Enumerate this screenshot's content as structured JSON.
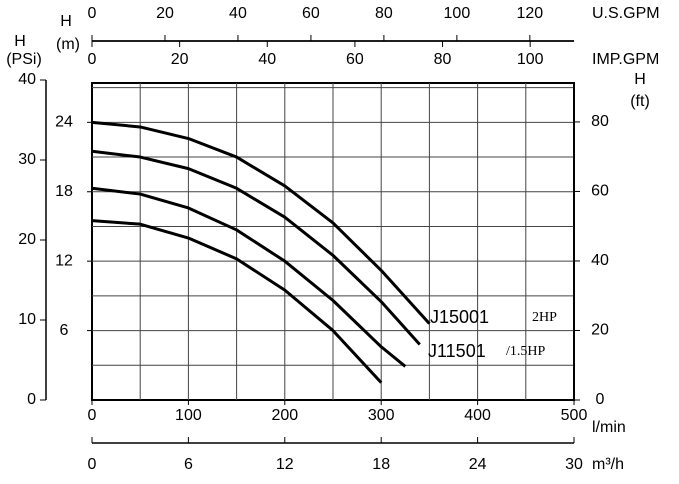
{
  "chart_data": {
    "type": "line",
    "x_label": "l/min",
    "xlim": [
      0,
      500
    ],
    "xticks": [
      0,
      100,
      200,
      300,
      400,
      500
    ],
    "y_label": [
      "H",
      "(m)"
    ],
    "ylim": [
      0,
      27.4
    ],
    "yticks": [
      6,
      12,
      18,
      24
    ],
    "xgrid": [
      50,
      100,
      150,
      200,
      250,
      300,
      350,
      400,
      450
    ],
    "ygrid": [
      3,
      6,
      9,
      12,
      15,
      18,
      21,
      24,
      27
    ],
    "psi_axis": {
      "label": [
        "H",
        "(PSi)"
      ],
      "lim": [
        0,
        40
      ],
      "ticks": [
        0,
        10,
        20,
        30,
        40
      ]
    },
    "ft_axis": {
      "label": [
        "H",
        "(ft)"
      ],
      "lim": [
        0,
        91.2
      ],
      "ticks": [
        0,
        20,
        40,
        60,
        80
      ]
    },
    "usgpm_axis": {
      "label": "U.S.GPM",
      "lim": [
        0,
        132.1
      ],
      "ticks": [
        0,
        20,
        40,
        60,
        80,
        100,
        120
      ]
    },
    "impgpm_axis": {
      "label": "IMP.GPM",
      "lim": [
        0,
        110
      ],
      "ticks": [
        0,
        20,
        40,
        60,
        80,
        100
      ]
    },
    "m3h_axis": {
      "label": "m³/h",
      "lim": [
        0,
        30
      ],
      "ticks": [
        0,
        6,
        12,
        18,
        24,
        30
      ]
    },
    "annotations": [
      "J15001",
      "2HP",
      "J11501",
      "/1.5HP"
    ],
    "series": [
      {
        "color": "#000000",
        "x": [
          0,
          50,
          100,
          150,
          200,
          250,
          300,
          350
        ],
        "values": [
          24,
          23.6,
          22.6,
          21,
          18.5,
          15.3,
          11.2,
          6.6
        ]
      },
      {
        "color": "#000000",
        "x": [
          0,
          50,
          100,
          150,
          200,
          250,
          300,
          340
        ],
        "values": [
          21.5,
          21,
          20,
          18.3,
          15.8,
          12.5,
          8.5,
          4.8
        ]
      },
      {
        "color": "#000000",
        "x": [
          0,
          50,
          100,
          150,
          200,
          250,
          300,
          325
        ],
        "values": [
          18.3,
          17.8,
          16.6,
          14.7,
          12,
          8.6,
          4.6,
          2.9
        ]
      },
      {
        "color": "#000000",
        "x": [
          0,
          50,
          100,
          150,
          200,
          250,
          300
        ],
        "values": [
          15.5,
          15.2,
          14,
          12.2,
          9.5,
          6,
          1.5
        ]
      }
    ]
  }
}
